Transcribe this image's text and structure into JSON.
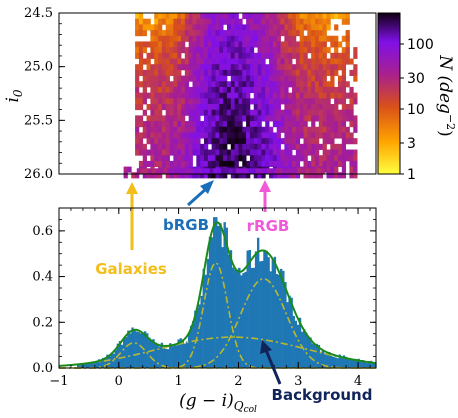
{
  "chart_data": [
    {
      "type": "heatmap",
      "ylabel_main": "i",
      "ylabel_sub": "0",
      "y_ticks": [
        "24.5",
        "25.0",
        "25.5",
        "26.0"
      ],
      "ylim": [
        26.0,
        24.5
      ],
      "xlim": [
        -1.0,
        4.3
      ],
      "colorbar": {
        "label_main": "N (deg",
        "label_sup": "−2",
        "label_close": ")",
        "ticks": [
          "1",
          "3",
          "10",
          "30",
          "100"
        ],
        "tick_values": [
          1,
          3,
          10,
          30,
          100
        ],
        "range": [
          1,
          300
        ],
        "scale": "log",
        "colormap": "gnuplot-like (purple–orange–yellow)"
      }
    },
    {
      "type": "bar",
      "xlabel_main": "(g − i)",
      "xlabel_sub": "Q",
      "xlabel_subsub": "col",
      "ylabel": "",
      "xlim": [
        -1.0,
        4.3
      ],
      "ylim": [
        0.0,
        0.7
      ],
      "x_ticks": [
        "−1",
        "0",
        "1",
        "2",
        "3",
        "4"
      ],
      "x_tick_values": [
        -1,
        0,
        1,
        2,
        3,
        4
      ],
      "y_ticks": [
        "0.0",
        "0.2",
        "0.4",
        "0.6"
      ],
      "y_tick_values": [
        0.0,
        0.2,
        0.4,
        0.6
      ],
      "bar_color": "#1f77b4",
      "fit_color": "#1a8a1a",
      "component_color": "#b8b830",
      "components": [
        {
          "name": "Galaxies",
          "mu": 0.25,
          "sigma": 0.22,
          "amp": 0.11
        },
        {
          "name": "bRGB",
          "mu": 1.62,
          "sigma": 0.2,
          "amp": 0.46
        },
        {
          "name": "rRGB",
          "mu": 2.42,
          "sigma": 0.38,
          "amp": 0.39
        },
        {
          "name": "Background",
          "mu": 1.9,
          "sigma": 1.25,
          "amp": 0.135
        }
      ]
    }
  ],
  "annotations": {
    "galaxies": {
      "text": "Galaxies",
      "color": "#f2be1a"
    },
    "brgb": {
      "text": "bRGB",
      "color": "#1a6fb8"
    },
    "rrgb": {
      "text": "rRGB",
      "color": "#f05ad8"
    },
    "background": {
      "text": "Background",
      "color": "#12255a"
    }
  }
}
